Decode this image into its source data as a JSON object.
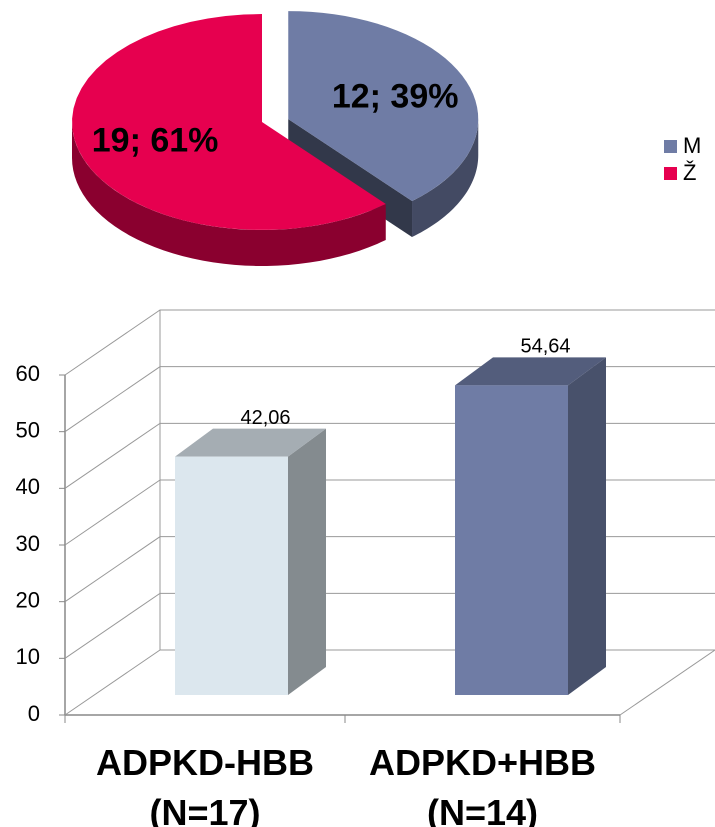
{
  "chart_data": [
    {
      "type": "pie",
      "categories": [
        "M",
        "Ž"
      ],
      "values": [
        12,
        19
      ],
      "value_labels": [
        "12; 39%",
        "19; 61%"
      ],
      "colors": [
        "#6f7ca5",
        "#e6004f"
      ],
      "legend": "right"
    },
    {
      "type": "bar",
      "categories": [
        "ADPKD-HBB\n(N=17)",
        "ADPKD+HBB\n(N=14)"
      ],
      "values": [
        42.06,
        54.64
      ],
      "value_labels": [
        "42,06",
        "54,64"
      ],
      "colors": [
        "#dce7ee",
        "#6f7ca5"
      ],
      "ylim": [
        0,
        60
      ],
      "yticks": [
        0,
        10,
        20,
        30,
        40,
        50,
        60
      ],
      "grid": true
    }
  ]
}
